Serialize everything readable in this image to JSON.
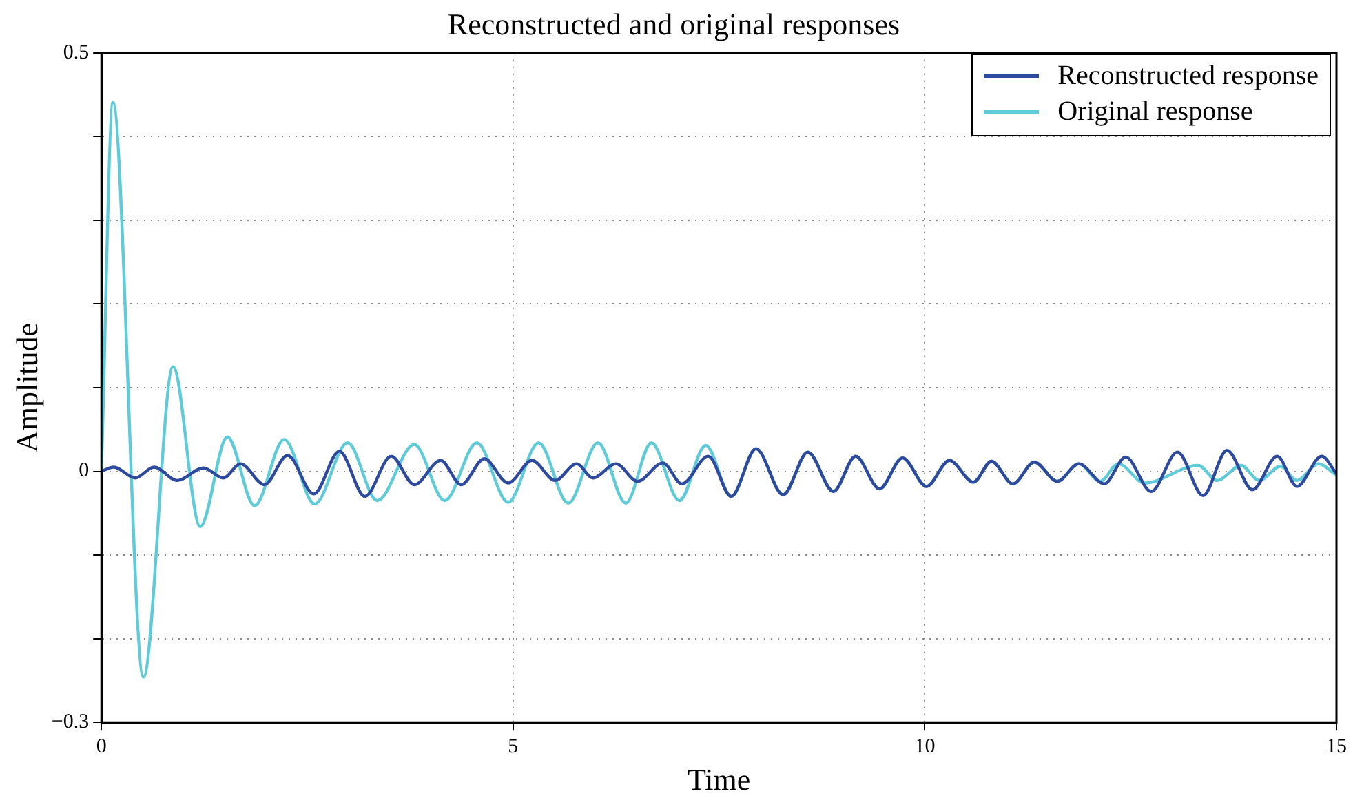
{
  "chart_data": {
    "type": "line",
    "title": "Reconstructed and original responses",
    "xlabel": "Time",
    "ylabel": "Amplitude",
    "xlim": [
      0,
      15
    ],
    "xticks": [
      0,
      5,
      10,
      15
    ],
    "ylim": [
      -0.3,
      0.5
    ],
    "yticks": [
      {
        "value": -0.3,
        "label": "−0.3"
      },
      {
        "value": -0.2,
        "label": null
      },
      {
        "value": -0.1,
        "label": null
      },
      0,
      {
        "value": 0.1,
        "label": null
      },
      {
        "value": 0.2,
        "label": null
      },
      {
        "value": 0.3,
        "label": null
      },
      {
        "value": 0.4,
        "label": null
      },
      0.5
    ],
    "grid": true,
    "legend": "top right",
    "marker": "none",
    "line_style": "solid",
    "series": [
      {
        "name": "Reconstructed response",
        "color": "#2e4a9e",
        "x": [
          0,
          0.15,
          0.41,
          0.64,
          0.92,
          1.24,
          1.48,
          1.69,
          1.98,
          2.26,
          2.58,
          2.89,
          3.2,
          3.52,
          3.8,
          4.12,
          4.37,
          4.65,
          4.94,
          5.23,
          5.51,
          5.77,
          5.97,
          6.25,
          6.51,
          6.82,
          7.05,
          7.37,
          7.65,
          7.95,
          8.28,
          8.58,
          8.89,
          9.16,
          9.45,
          9.73,
          10.02,
          10.3,
          10.59,
          10.81,
          11.07,
          11.33,
          11.61,
          11.87,
          12.18,
          12.44,
          12.75,
          13.07,
          13.38,
          13.67,
          13.98,
          14.28,
          14.52,
          14.82,
          15
        ],
        "values": [
          0,
          0.005,
          -0.008,
          0.005,
          -0.011,
          0.004,
          -0.008,
          0.009,
          -0.016,
          0.019,
          -0.027,
          0.024,
          -0.03,
          0.018,
          -0.016,
          0.013,
          -0.016,
          0.015,
          -0.014,
          0.013,
          -0.011,
          0.009,
          -0.008,
          0.009,
          -0.012,
          0.01,
          -0.015,
          0.018,
          -0.03,
          0.027,
          -0.028,
          0.023,
          -0.024,
          0.018,
          -0.021,
          0.016,
          -0.018,
          0.013,
          -0.013,
          0.012,
          -0.015,
          0.011,
          -0.012,
          0.009,
          -0.015,
          0.017,
          -0.024,
          0.023,
          -0.029,
          0.025,
          -0.022,
          0.018,
          -0.018,
          0.018,
          -0.003
        ]
      },
      {
        "name": "Original response",
        "color": "#5fcbd8",
        "x": [
          0,
          0.14,
          0.51,
          0.87,
          1.2,
          1.53,
          1.86,
          2.22,
          2.59,
          2.99,
          3.35,
          3.8,
          4.17,
          4.56,
          4.94,
          5.31,
          5.67,
          6.03,
          6.37,
          6.68,
          7.02,
          7.34,
          7.65,
          7.95,
          8.28,
          8.58,
          8.89,
          9.16,
          9.45,
          9.73,
          10.02,
          10.3,
          10.59,
          10.81,
          11.07,
          11.33,
          11.61,
          11.87,
          12.13,
          12.35,
          12.67,
          13.32,
          13.55,
          13.84,
          14.06,
          14.32,
          14.52,
          14.78,
          15
        ],
        "values": [
          0,
          0.441,
          -0.246,
          0.125,
          -0.066,
          0.041,
          -0.041,
          0.038,
          -0.039,
          0.034,
          -0.035,
          0.032,
          -0.035,
          0.034,
          -0.037,
          0.034,
          -0.038,
          0.034,
          -0.038,
          0.034,
          -0.035,
          0.031,
          -0.03,
          0.027,
          -0.028,
          0.023,
          -0.024,
          0.018,
          -0.021,
          0.016,
          -0.018,
          0.013,
          -0.013,
          0.012,
          -0.015,
          0.011,
          -0.012,
          0.009,
          -0.012,
          0.009,
          -0.014,
          0.007,
          -0.011,
          0.007,
          -0.011,
          0.006,
          -0.011,
          0.009,
          -0.005
        ]
      }
    ]
  }
}
